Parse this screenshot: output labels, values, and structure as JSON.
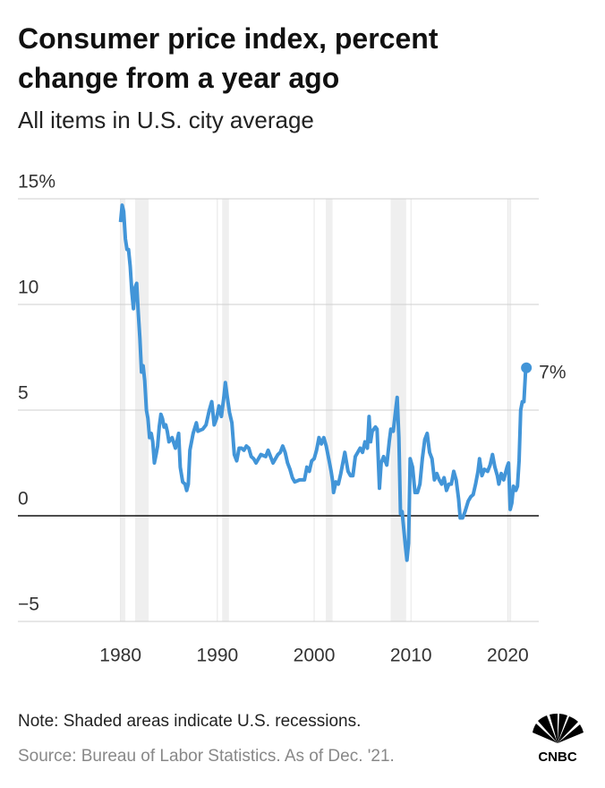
{
  "chart_data": {
    "type": "line",
    "title": "Consumer price index, percent change from a year ago",
    "subtitle": "All items in U.S. city average",
    "note": "Note: Shaded areas indicate U.S. recessions.",
    "source": "Source: Bureau of Labor Statistics. As of Dec. '21.",
    "logo": "CNBC",
    "annotation": "7%",
    "color": "#4295d8",
    "recessions": [
      [
        1980.0,
        1980.5
      ],
      [
        1981.5,
        1982.9
      ],
      [
        1990.5,
        1991.2
      ],
      [
        2001.2,
        2001.9
      ],
      [
        2007.9,
        2009.5
      ],
      [
        2020.1,
        2020.35
      ]
    ],
    "xlim": [
      1969.4,
      2023.2
    ],
    "xticks": [
      1980,
      1990,
      2000,
      2010,
      2020
    ],
    "ylim": [
      -5,
      15
    ],
    "yticks": [
      {
        "value": 15,
        "label": "15%"
      },
      10,
      5,
      0,
      {
        "value": -5,
        "label": "−5"
      }
    ],
    "grid": true,
    "x": [
      1980.0,
      1980.17,
      1980.33,
      1980.5,
      1980.67,
      1980.83,
      1981.0,
      1981.17,
      1981.33,
      1981.5,
      1981.67,
      1981.83,
      1982.0,
      1982.17,
      1982.33,
      1982.5,
      1982.67,
      1982.83,
      1983.0,
      1983.17,
      1983.33,
      1983.5,
      1983.67,
      1983.83,
      1984.0,
      1984.17,
      1984.33,
      1984.5,
      1984.67,
      1984.83,
      1985.0,
      1985.33,
      1985.67,
      1986.0,
      1986.17,
      1986.42,
      1986.67,
      1986.83,
      1987.0,
      1987.17,
      1987.5,
      1987.83,
      1988.0,
      1988.5,
      1988.83,
      1989.17,
      1989.42,
      1989.67,
      1989.92,
      1990.17,
      1990.42,
      1990.67,
      1990.83,
      1991.0,
      1991.25,
      1991.5,
      1991.75,
      1992.0,
      1992.25,
      1992.5,
      1992.75,
      1993.0,
      1993.25,
      1993.5,
      1993.75,
      1994.0,
      1994.5,
      1995.0,
      1995.25,
      1995.5,
      1995.75,
      1996.0,
      1996.25,
      1996.5,
      1996.75,
      1997.0,
      1997.25,
      1997.5,
      1997.75,
      1998.0,
      1998.5,
      1999.0,
      1999.25,
      1999.5,
      1999.75,
      2000.0,
      2000.25,
      2000.5,
      2000.75,
      2001.0,
      2001.25,
      2001.5,
      2001.75,
      2001.92,
      2002.0,
      2002.25,
      2002.5,
      2002.75,
      2003.0,
      2003.17,
      2003.5,
      2003.75,
      2004.0,
      2004.25,
      2004.5,
      2004.75,
      2005.0,
      2005.25,
      2005.5,
      2005.67,
      2005.83,
      2006.0,
      2006.33,
      2006.5,
      2006.75,
      2006.92,
      2007.17,
      2007.5,
      2007.75,
      2007.92,
      2008.17,
      2008.42,
      2008.58,
      2008.75,
      2008.92,
      2009.08,
      2009.25,
      2009.42,
      2009.58,
      2009.75,
      2009.92,
      2010.17,
      2010.42,
      2010.67,
      2010.92,
      2011.17,
      2011.42,
      2011.67,
      2011.92,
      2012.17,
      2012.42,
      2012.67,
      2012.92,
      2013.17,
      2013.42,
      2013.67,
      2013.92,
      2014.17,
      2014.42,
      2014.67,
      2014.92,
      2015.08,
      2015.33,
      2015.58,
      2015.92,
      2016.17,
      2016.42,
      2016.67,
      2016.92,
      2017.08,
      2017.33,
      2017.58,
      2017.92,
      2018.17,
      2018.42,
      2018.67,
      2018.92,
      2019.08,
      2019.33,
      2019.58,
      2019.92,
      2020.08,
      2020.25,
      2020.42,
      2020.58,
      2020.83,
      2021.0,
      2021.17,
      2021.33,
      2021.5,
      2021.67,
      2021.83,
      2021.92
    ],
    "values": [
      13.9,
      14.7,
      14.4,
      13.1,
      12.6,
      12.6,
      11.8,
      10.6,
      9.8,
      10.8,
      11.0,
      9.6,
      8.4,
      6.8,
      7.1,
      6.4,
      5.0,
      4.6,
      3.7,
      3.9,
      3.5,
      2.5,
      2.9,
      3.3,
      4.2,
      4.8,
      4.6,
      4.2,
      4.3,
      4.0,
      3.5,
      3.7,
      3.2,
      3.9,
      2.3,
      1.6,
      1.5,
      1.2,
      1.5,
      3.1,
      3.9,
      4.4,
      4.0,
      4.1,
      4.3,
      5.0,
      5.4,
      4.3,
      4.6,
      5.2,
      4.7,
      5.6,
      6.3,
      5.7,
      4.9,
      4.4,
      2.9,
      2.6,
      3.2,
      3.2,
      3.1,
      3.3,
      3.2,
      2.8,
      2.7,
      2.5,
      2.9,
      2.8,
      3.1,
      2.8,
      2.5,
      2.7,
      2.9,
      3.0,
      3.3,
      3.0,
      2.5,
      2.2,
      1.8,
      1.6,
      1.7,
      1.7,
      2.3,
      2.1,
      2.6,
      2.7,
      3.1,
      3.7,
      3.4,
      3.7,
      3.3,
      2.7,
      2.1,
      1.6,
      1.1,
      1.6,
      1.5,
      2.0,
      2.6,
      3.0,
      2.1,
      1.9,
      1.9,
      2.8,
      3.0,
      3.2,
      3.0,
      3.5,
      3.2,
      4.7,
      3.5,
      4.0,
      4.2,
      4.1,
      1.3,
      2.5,
      2.8,
      2.4,
      3.5,
      4.1,
      4.0,
      5.0,
      5.6,
      3.7,
      0.1,
      0.2,
      -0.6,
      -1.4,
      -2.1,
      -1.3,
      2.7,
      2.3,
      1.1,
      1.1,
      1.5,
      2.7,
      3.6,
      3.9,
      3.0,
      2.7,
      1.7,
      2.0,
      1.7,
      1.5,
      1.8,
      1.2,
      1.5,
      1.5,
      2.1,
      1.7,
      0.8,
      -0.1,
      -0.1,
      0.2,
      0.7,
      0.9,
      1.0,
      1.5,
      2.1,
      2.7,
      1.9,
      2.2,
      2.1,
      2.4,
      2.9,
      2.3,
      1.9,
      1.5,
      2.0,
      1.7,
      2.3,
      2.5,
      0.3,
      0.6,
      1.4,
      1.2,
      1.4,
      2.6,
      5.0,
      5.4,
      5.4,
      6.8,
      7.0
    ]
  }
}
